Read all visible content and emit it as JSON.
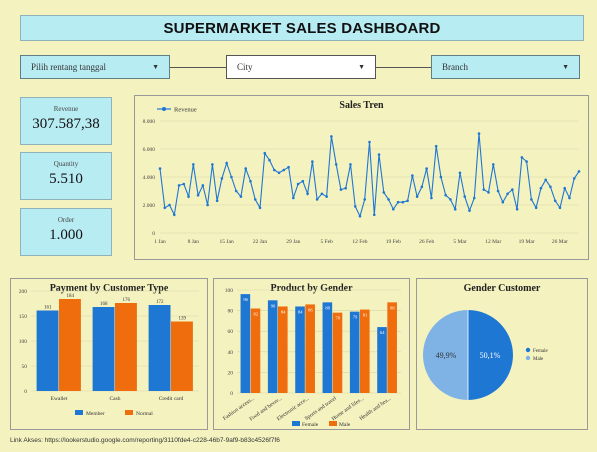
{
  "header": {
    "title": "SUPERMARKET SALES DASHBOARD"
  },
  "filters": {
    "date_range": "Pilih rentang tanggal",
    "city": "City",
    "branch": "Branch"
  },
  "kpis": [
    {
      "label": "Revenue",
      "value": "307.587,38"
    },
    {
      "label": "Quantity",
      "value": "5.510"
    },
    {
      "label": "Order",
      "value": "1.000"
    }
  ],
  "footer": {
    "link": "Link Akses: https://lookerstudio.google.com/reporting/3110fde4-c228-46b7-9af9-b83c4526f7f6"
  },
  "colors": {
    "blue": "#1f77d4",
    "orange": "#f06d0e",
    "light_blue": "#7fb2e5",
    "background": "#f4f2bf",
    "accent": "#b8ecf3"
  },
  "chart_data": [
    {
      "type": "line",
      "title": "Sales Tren",
      "legend": [
        "Revenue"
      ],
      "legend_position": "top-left",
      "y_ticks": [
        "8.000",
        "6.000",
        "4.000",
        "2.000",
        "0"
      ],
      "ylim": [
        0,
        8000
      ],
      "x_ticks": [
        "1 Jan",
        "8 Jan",
        "15 Jan",
        "22 Jan",
        "29 Jan",
        "5 Feb",
        "12 Feb",
        "19 Feb",
        "26 Feb",
        "5 Mar",
        "12 Mar",
        "19 Mar",
        "26 Mar"
      ],
      "series": [
        {
          "name": "Revenue",
          "values": [
            4600,
            1800,
            2000,
            1300,
            3400,
            3500,
            2600,
            4900,
            2700,
            3400,
            2000,
            4900,
            2300,
            3900,
            5000,
            4000,
            3000,
            2600,
            4600,
            3700,
            2400,
            1800,
            5700,
            5200,
            4500,
            4300,
            4500,
            4700,
            2500,
            3500,
            3700,
            2800,
            5100,
            2400,
            2800,
            2600,
            6900,
            4900,
            3100,
            3200,
            4900,
            1900,
            1200,
            2400,
            6500,
            1300,
            5600,
            2900,
            2400,
            1700,
            2200,
            2200,
            2300,
            4100,
            2600,
            3300,
            4600,
            2500,
            6200,
            4000,
            2700,
            2400,
            1700,
            4300,
            2600,
            1600,
            2500,
            7100,
            3100,
            2900,
            4900,
            3000,
            2200,
            2800,
            3100,
            1700,
            5400,
            5100,
            2400,
            1800,
            3200,
            3800,
            3300,
            2300,
            1800,
            3200,
            2500,
            3900,
            4400
          ]
        }
      ]
    },
    {
      "type": "bar",
      "title": "Payment by Customer Type",
      "categories": [
        "Ewallet",
        "Cash",
        "Credit card"
      ],
      "ylim": [
        0,
        200
      ],
      "y_ticks": [
        "200",
        "150",
        "100",
        "50",
        "0"
      ],
      "series": [
        {
          "name": "Member",
          "values": [
            161,
            168,
            172
          ]
        },
        {
          "name": "Normal",
          "values": [
            184,
            176,
            139
          ]
        }
      ]
    },
    {
      "type": "bar",
      "title": "Product by Gender",
      "categories": [
        "Fashion access...",
        "Food and bever...",
        "Electronic acce...",
        "Sports and travel",
        "Home and lifes...",
        "Health and bea..."
      ],
      "ylim": [
        0,
        100
      ],
      "y_ticks": [
        "100",
        "80",
        "60",
        "40",
        "20",
        "0"
      ],
      "series": [
        {
          "name": "Female",
          "values": [
            96,
            90,
            84,
            88,
            79,
            64
          ]
        },
        {
          "name": "Male",
          "values": [
            82,
            84,
            86,
            78,
            81,
            88
          ]
        }
      ]
    },
    {
      "type": "pie",
      "title": "Gender Customer",
      "slices": [
        {
          "name": "Female",
          "value": 50.1,
          "label": "50,1%"
        },
        {
          "name": "Male",
          "value": 49.9,
          "label": "49,9%"
        }
      ]
    }
  ]
}
